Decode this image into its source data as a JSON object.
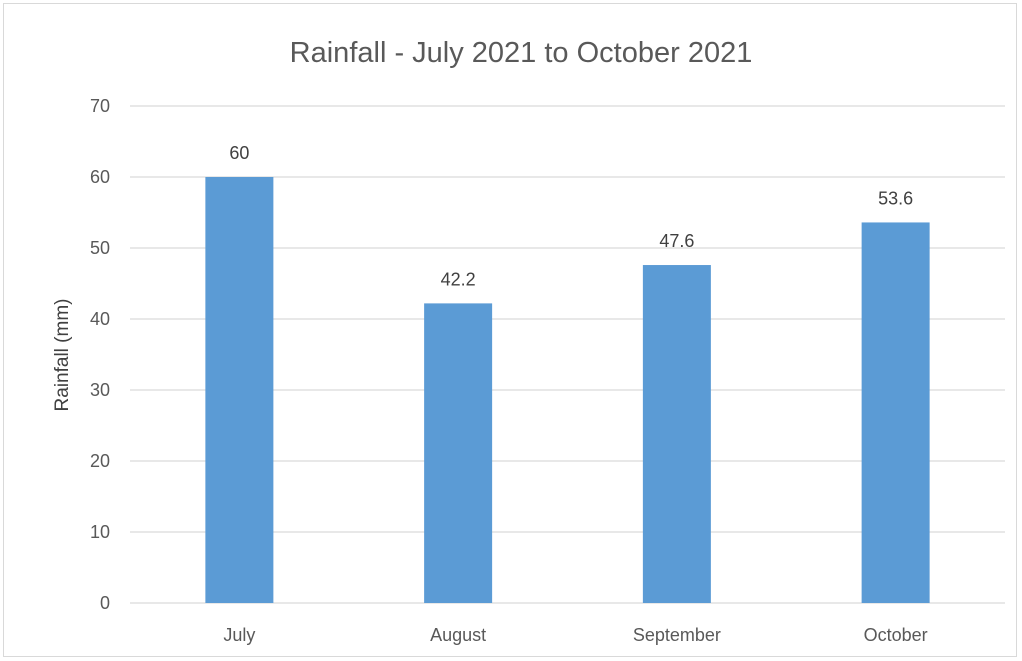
{
  "chart_data": {
    "type": "bar",
    "title": "Rainfall - July 2021 to October 2021",
    "xlabel": "",
    "ylabel": "Rainfall (mm)",
    "categories": [
      "July",
      "August",
      "September",
      "October"
    ],
    "values": [
      60,
      42.2,
      47.6,
      53.6
    ],
    "data_labels": [
      "60",
      "42.2",
      "47.6",
      "53.6"
    ],
    "ylim": [
      0,
      70
    ],
    "y_ticks": [
      0,
      10,
      20,
      30,
      40,
      50,
      60,
      70
    ],
    "grid": true,
    "legend": "none",
    "bar_color": "#5b9bd5",
    "grid_color": "#d9d9d9"
  }
}
